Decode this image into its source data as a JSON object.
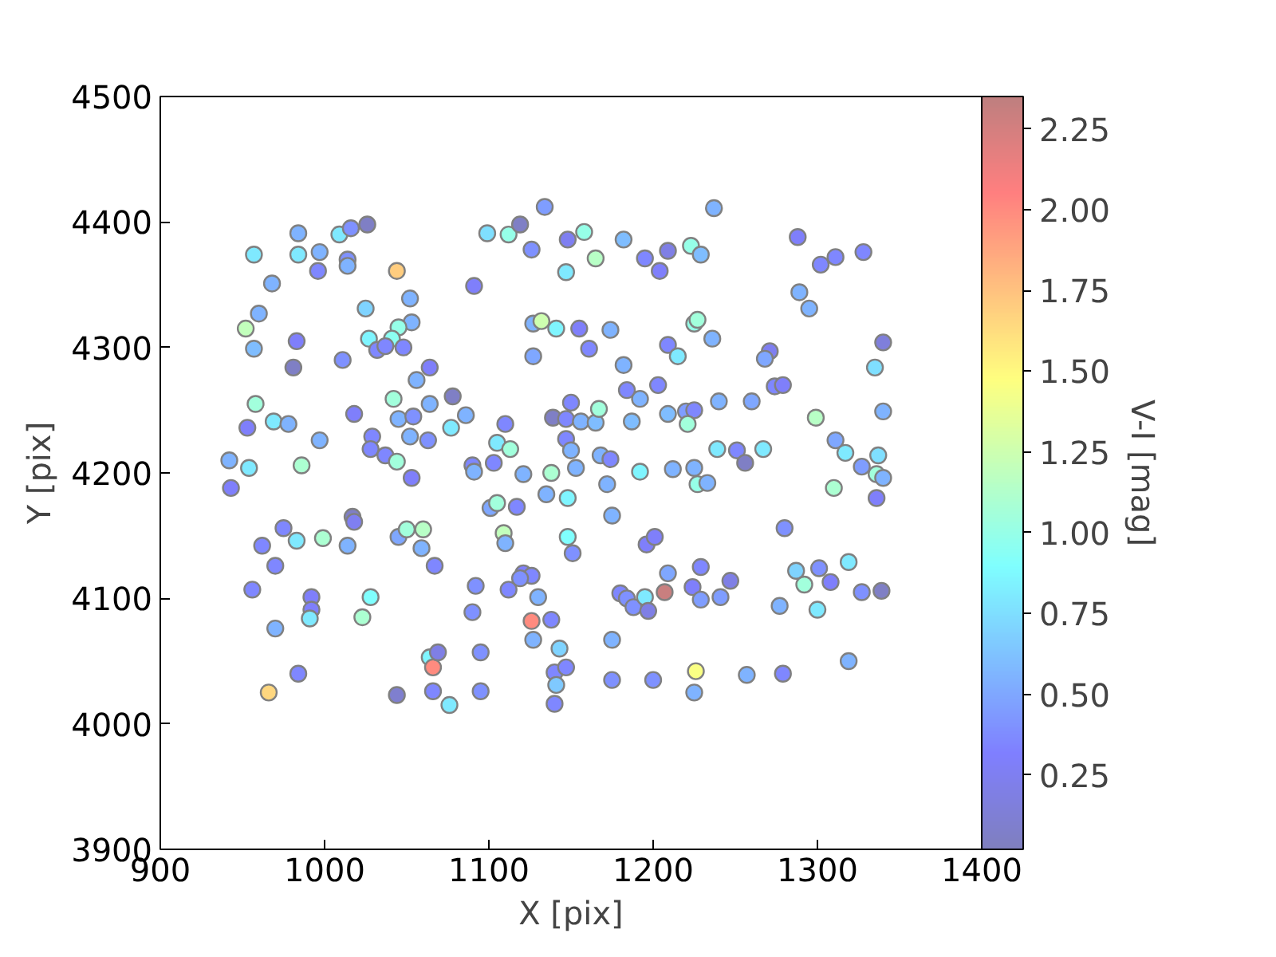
{
  "chart_data": {
    "type": "scatter",
    "xlabel": "X [pix]",
    "ylabel": "Y [pix]",
    "clabel": "V-I [mag]",
    "marker": "circle",
    "xlim": [
      900,
      1400
    ],
    "ylim": [
      3900,
      4500
    ],
    "xticks": [
      900,
      1000,
      1100,
      1200,
      1300,
      1400
    ],
    "yticks": [
      3900,
      4000,
      4100,
      4200,
      4300,
      4400,
      4500
    ],
    "clim": [
      0.02,
      2.35
    ],
    "cticks": [
      0.25,
      {
        "value": 0.5,
        "label": "0.50"
      },
      0.75,
      {
        "value": 1.0,
        "label": "1.00"
      },
      1.25,
      {
        "value": 1.5,
        "label": "1.50"
      },
      1.75,
      {
        "value": 2.0,
        "label": "2.00"
      },
      2.25
    ],
    "x": [
      984,
      957,
      984,
      997,
      1009,
      1016,
      1026,
      996,
      1014,
      1014,
      1044,
      968,
      960,
      952,
      957,
      983,
      981,
      1011,
      1025,
      1052,
      1053,
      1045,
      1041,
      1027,
      1032,
      1037,
      1048,
      1064,
      1056,
      1042,
      1064,
      958,
      953,
      969,
      978,
      1018,
      1045,
      1054,
      997,
      1029,
      1052,
      1063,
      1028,
      1037,
      1044,
      942,
      954,
      986,
      1053,
      1134,
      1099,
      1112,
      1119,
      1126,
      1148,
      1158,
      1165,
      1147,
      1182,
      1195,
      1204,
      1209,
      1223,
      1229,
      1237,
      1091,
      1127,
      1132,
      1141,
      1155,
      1174,
      1161,
      1127,
      1182,
      1209,
      1215,
      1225,
      1227,
      1236,
      1078,
      1086,
      1077,
      1110,
      1105,
      1113,
      1090,
      1091,
      1103,
      1121,
      1138,
      1153,
      1168,
      1174,
      1150,
      1139,
      1147,
      1156,
      1165,
      1167,
      1147,
      1150,
      1187,
      1184,
      1192,
      1203,
      1209,
      1220,
      1225,
      1221,
      1192,
      1212,
      1225,
      1288,
      1302,
      1311,
      1328,
      1289,
      1295,
      1271,
      1268,
      1340,
      1335,
      1240,
      1260,
      1274,
      1279,
      1299,
      1340,
      1311,
      1317,
      1337,
      1239,
      1251,
      1256,
      1267,
      1327,
      1336,
      1340,
      943,
      1017,
      1018,
      975,
      962,
      983,
      999,
      1014,
      1045,
      1050,
      1060,
      1059,
      1067,
      970,
      956,
      992,
      992,
      991,
      1028,
      1023,
      970,
      984,
      966,
      1044,
      1066,
      1064,
      1066,
      1069,
      1101,
      1105,
      1117,
      1135,
      1148,
      1172,
      1175,
      1227,
      1233,
      1109,
      1110,
      1148,
      1151,
      1196,
      1201,
      1209,
      1229,
      1092,
      1112,
      1121,
      1126,
      1119,
      1130,
      1090,
      1126,
      1138,
      1127,
      1143,
      1140,
      1147,
      1141,
      1140,
      1095,
      1095,
      1076,
      1175,
      1175,
      1200,
      1225,
      1226,
      1180,
      1184,
      1188,
      1195,
      1197,
      1207,
      1224,
      1229,
      1310,
      1336,
      1280,
      1247,
      1241,
      1287,
      1292,
      1301,
      1308,
      1319,
      1327,
      1339,
      1277,
      1300,
      1319,
      1257,
      1279
    ],
    "values": [
      4391,
      4374,
      4374,
      4376,
      4390,
      4395,
      4398,
      4361,
      4370,
      4365,
      4361,
      4351,
      4327,
      4315,
      4299,
      4305,
      4284,
      4290,
      4331,
      4339,
      4320,
      4316,
      4307,
      4307,
      4298,
      4301,
      4300,
      4284,
      4274,
      4259,
      4255,
      4255,
      4236,
      4241,
      4239,
      4247,
      4243,
      4245,
      4226,
      4229,
      4229,
      4226,
      4219,
      4214,
      4209,
      4210,
      4204,
      4206,
      4196,
      4412,
      4391,
      4390,
      4398,
      4378,
      4386,
      4392,
      4371,
      4360,
      4386,
      4371,
      4361,
      4377,
      4381,
      4374,
      4411,
      4349,
      4319,
      4321,
      4315,
      4315,
      4314,
      4299,
      4293,
      4286,
      4302,
      4293,
      4319,
      4322,
      4307,
      4261,
      4246,
      4236,
      4239,
      4224,
      4219,
      4206,
      4201,
      4208,
      4199,
      4200,
      4204,
      4214,
      4211,
      4256,
      4244,
      4243,
      4241,
      4240,
      4251,
      4227,
      4218,
      4241,
      4266,
      4259,
      4270,
      4247,
      4249,
      4250,
      4239,
      4201,
      4203,
      4204,
      4388,
      4366,
      4372,
      4376,
      4344,
      4331,
      4297,
      4291,
      4304,
      4284,
      4257,
      4257,
      4269,
      4270,
      4244,
      4249,
      4226,
      4216,
      4214,
      4219,
      4218,
      4208,
      4219,
      4205,
      4199,
      4196,
      4188,
      4165,
      4161,
      4156,
      4142,
      4146,
      4148,
      4142,
      4149,
      4155,
      4155,
      4140,
      4126,
      4126,
      4107,
      4101,
      4091,
      4084,
      4101,
      4085,
      4076,
      4040,
      4025,
      4023,
      4026,
      4053,
      4045,
      4057,
      4172,
      4176,
      4173,
      4183,
      4180,
      4191,
      4166,
      4191,
      4192,
      4152,
      4144,
      4149,
      4136,
      4143,
      4149,
      4120,
      4125,
      4110,
      4107,
      4120,
      4118,
      4116,
      4101,
      4089,
      4082,
      4083,
      4067,
      4060,
      4041,
      4045,
      4031,
      4016,
      4057,
      4026,
      4015,
      4067,
      4035,
      4035,
      4025,
      4042,
      4104,
      4100,
      4093,
      4101,
      4090,
      4105,
      4109,
      4099,
      4188,
      4180,
      4156,
      4114,
      4101,
      4122,
      4111,
      4124,
      4113,
      4129,
      4105,
      4106,
      4094,
      4091,
      4050,
      4039,
      4040
    ],
    "cvalues": [
      0.55,
      0.8,
      0.8,
      0.55,
      0.8,
      0.4,
      0.05,
      0.35,
      0.4,
      0.55,
      1.7,
      0.55,
      0.55,
      1.2,
      0.6,
      0.3,
      0.05,
      0.4,
      0.7,
      0.55,
      0.55,
      1.0,
      0.95,
      0.85,
      0.35,
      0.35,
      0.35,
      0.3,
      0.55,
      1.05,
      0.55,
      1.05,
      0.3,
      0.8,
      0.55,
      0.3,
      0.55,
      0.4,
      0.55,
      0.35,
      0.55,
      0.4,
      0.35,
      0.35,
      1.05,
      0.55,
      0.8,
      1.1,
      0.3,
      0.45,
      0.75,
      1.0,
      0.05,
      0.4,
      0.25,
      1.0,
      1.15,
      0.8,
      0.6,
      0.35,
      0.3,
      0.2,
      1.0,
      0.6,
      0.55,
      0.3,
      0.55,
      1.25,
      0.85,
      0.3,
      0.55,
      0.35,
      0.5,
      0.55,
      0.35,
      0.8,
      1.0,
      1.05,
      0.55,
      0.05,
      0.55,
      0.8,
      0.35,
      0.8,
      1.05,
      0.35,
      0.55,
      0.35,
      0.55,
      1.1,
      0.55,
      0.55,
      0.35,
      0.35,
      0.05,
      0.35,
      0.55,
      0.6,
      1.05,
      0.35,
      0.55,
      0.6,
      0.35,
      0.55,
      0.35,
      0.6,
      0.45,
      0.35,
      1.05,
      0.85,
      0.55,
      0.55,
      0.3,
      0.35,
      0.35,
      0.35,
      0.55,
      0.55,
      0.25,
      0.5,
      0.15,
      0.75,
      0.55,
      0.5,
      0.35,
      0.3,
      1.15,
      0.55,
      0.5,
      0.8,
      0.75,
      0.8,
      0.35,
      0.05,
      0.8,
      0.45,
      1.05,
      0.55,
      0.3,
      0.05,
      0.25,
      0.35,
      0.35,
      0.8,
      1.1,
      0.55,
      0.5,
      1.05,
      1.15,
      0.55,
      0.35,
      0.35,
      0.35,
      0.3,
      0.3,
      0.8,
      0.9,
      1.1,
      0.55,
      0.35,
      1.65,
      0.1,
      0.35,
      0.85,
      2.0,
      0.2,
      0.5,
      1.05,
      0.35,
      0.55,
      0.85,
      0.55,
      0.55,
      1.0,
      0.55,
      1.2,
      0.55,
      0.9,
      0.4,
      0.3,
      0.3,
      0.5,
      0.35,
      0.4,
      0.35,
      0.3,
      0.35,
      0.4,
      0.55,
      0.4,
      2.0,
      0.35,
      0.55,
      0.7,
      0.35,
      0.35,
      0.65,
      0.35,
      0.4,
      0.4,
      0.8,
      0.55,
      0.4,
      0.4,
      0.55,
      1.45,
      0.35,
      0.4,
      0.4,
      0.8,
      0.2,
      2.3,
      0.3,
      0.45,
      1.1,
      0.3,
      0.4,
      0.2,
      0.45,
      0.7,
      1.05,
      0.4,
      0.3,
      0.8,
      0.4,
      0.05,
      0.55,
      0.8,
      0.55,
      0.55,
      0.35
    ]
  }
}
